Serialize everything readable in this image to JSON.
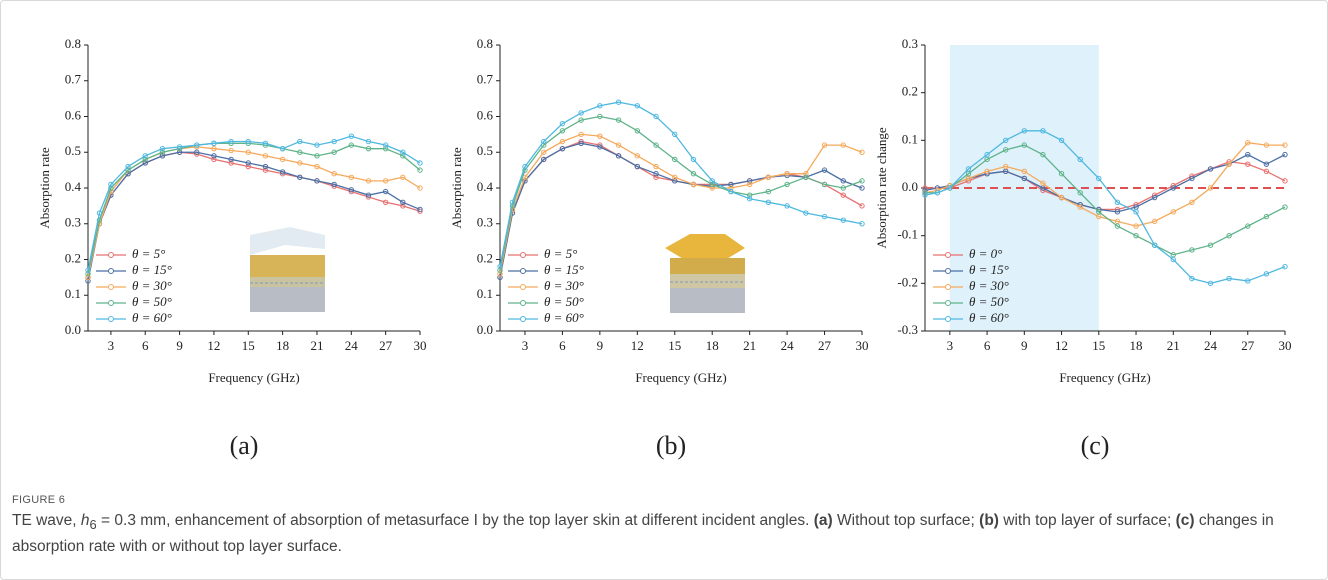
{
  "chart_data": [
    {
      "type": "line",
      "xlabel": "Frequency (GHz)",
      "ylabel": "Absorption rate",
      "panel_label": "(a)",
      "x": [
        1,
        2,
        3,
        4.5,
        6,
        7.5,
        9,
        10.5,
        12,
        13.5,
        15,
        16.5,
        18,
        19.5,
        21,
        22.5,
        24,
        25.5,
        27,
        28.5,
        30
      ],
      "xlim": [
        1,
        30
      ],
      "xticks": [
        3,
        6,
        9,
        12,
        15,
        18,
        21,
        24,
        27,
        30
      ],
      "ylim": [
        0,
        0.8
      ],
      "yticks": [
        {
          "value": 0,
          "label": "0.0"
        },
        0.1,
        0.2,
        0.3,
        0.4,
        0.5,
        0.6,
        0.7,
        0.8
      ],
      "legend": "lower left",
      "series": [
        {
          "name": "θ = 5°",
          "color": "#e8706f",
          "values": [
            0.15,
            0.3,
            0.38,
            0.44,
            0.47,
            0.49,
            0.5,
            0.495,
            0.48,
            0.47,
            0.46,
            0.45,
            0.44,
            0.43,
            0.42,
            0.405,
            0.39,
            0.375,
            0.36,
            0.35,
            0.335
          ]
        },
        {
          "name": "θ = 15°",
          "color": "#4a6fa5",
          "values": [
            0.14,
            0.3,
            0.38,
            0.44,
            0.47,
            0.49,
            0.5,
            0.5,
            0.49,
            0.48,
            0.47,
            0.46,
            0.445,
            0.43,
            0.42,
            0.41,
            0.395,
            0.38,
            0.39,
            0.36,
            0.34
          ]
        },
        {
          "name": "θ = 30°",
          "color": "#f5a95c",
          "values": [
            0.15,
            0.3,
            0.39,
            0.45,
            0.48,
            0.5,
            0.51,
            0.515,
            0.51,
            0.505,
            0.5,
            0.49,
            0.48,
            0.47,
            0.46,
            0.44,
            0.43,
            0.42,
            0.42,
            0.43,
            0.4
          ]
        },
        {
          "name": "θ = 50°",
          "color": "#5fb38a",
          "values": [
            0.16,
            0.31,
            0.4,
            0.45,
            0.48,
            0.5,
            0.51,
            0.52,
            0.525,
            0.525,
            0.525,
            0.52,
            0.51,
            0.5,
            0.49,
            0.5,
            0.52,
            0.51,
            0.51,
            0.49,
            0.45
          ]
        },
        {
          "name": "θ = 60°",
          "color": "#4fb8e0",
          "values": [
            0.17,
            0.33,
            0.41,
            0.46,
            0.49,
            0.51,
            0.515,
            0.52,
            0.525,
            0.53,
            0.53,
            0.525,
            0.51,
            0.53,
            0.52,
            0.53,
            0.545,
            0.53,
            0.52,
            0.5,
            0.47
          ]
        }
      ]
    },
    {
      "type": "line",
      "xlabel": "Frequency (GHz)",
      "ylabel": "Absorption rate",
      "panel_label": "(b)",
      "x": [
        1,
        2,
        3,
        4.5,
        6,
        7.5,
        9,
        10.5,
        12,
        13.5,
        15,
        16.5,
        18,
        19.5,
        21,
        22.5,
        24,
        25.5,
        27,
        28.5,
        30
      ],
      "xlim": [
        1,
        30
      ],
      "xticks": [
        3,
        6,
        9,
        12,
        15,
        18,
        21,
        24,
        27,
        30
      ],
      "ylim": [
        0,
        0.8
      ],
      "yticks": [
        {
          "value": 0,
          "label": "0.0"
        },
        0.1,
        0.2,
        0.3,
        0.4,
        0.5,
        0.6,
        0.7,
        0.8
      ],
      "legend": "lower left",
      "series": [
        {
          "name": "θ = 5°",
          "color": "#e8706f",
          "values": [
            0.15,
            0.33,
            0.42,
            0.48,
            0.51,
            0.53,
            0.52,
            0.49,
            0.46,
            0.43,
            0.42,
            0.41,
            0.41,
            0.41,
            0.42,
            0.43,
            0.44,
            0.43,
            0.41,
            0.38,
            0.35
          ]
        },
        {
          "name": "θ = 15°",
          "color": "#4a6fa5",
          "values": [
            0.15,
            0.33,
            0.42,
            0.48,
            0.51,
            0.525,
            0.515,
            0.49,
            0.46,
            0.44,
            0.42,
            0.41,
            0.405,
            0.41,
            0.42,
            0.43,
            0.435,
            0.43,
            0.45,
            0.42,
            0.4
          ]
        },
        {
          "name": "θ = 30°",
          "color": "#f5a95c",
          "values": [
            0.16,
            0.34,
            0.43,
            0.5,
            0.53,
            0.55,
            0.545,
            0.52,
            0.49,
            0.46,
            0.43,
            0.41,
            0.4,
            0.4,
            0.41,
            0.43,
            0.44,
            0.44,
            0.52,
            0.52,
            0.5
          ]
        },
        {
          "name": "θ = 50°",
          "color": "#5fb38a",
          "values": [
            0.17,
            0.35,
            0.45,
            0.52,
            0.56,
            0.59,
            0.6,
            0.59,
            0.56,
            0.52,
            0.48,
            0.44,
            0.41,
            0.39,
            0.38,
            0.39,
            0.41,
            0.43,
            0.41,
            0.4,
            0.42
          ]
        },
        {
          "name": "θ = 60°",
          "color": "#4fb8e0",
          "values": [
            0.18,
            0.36,
            0.46,
            0.53,
            0.58,
            0.61,
            0.63,
            0.64,
            0.63,
            0.6,
            0.55,
            0.48,
            0.42,
            0.39,
            0.37,
            0.36,
            0.35,
            0.33,
            0.32,
            0.31,
            0.3
          ]
        }
      ]
    },
    {
      "type": "line",
      "xlabel": "Frequency (GHz)",
      "ylabel": "Absorption rate change",
      "panel_label": "(c)",
      "x": [
        1,
        2,
        3,
        4.5,
        6,
        7.5,
        9,
        10.5,
        12,
        13.5,
        15,
        16.5,
        18,
        19.5,
        21,
        22.5,
        24,
        25.5,
        27,
        28.5,
        30
      ],
      "xlim": [
        1,
        30
      ],
      "xticks": [
        3,
        6,
        9,
        12,
        15,
        18,
        21,
        24,
        27,
        30
      ],
      "ylim": [
        -0.3,
        0.3
      ],
      "yticks": [
        -0.3,
        -0.2,
        -0.1,
        {
          "value": 0,
          "label": "0.0"
        },
        0.1,
        0.2,
        0.3
      ],
      "legend": "lower left",
      "span": {
        "x": [
          3,
          15
        ],
        "color": "#dff1fb"
      },
      "reference_line": {
        "y": 0,
        "color": "#e05050",
        "style": "dashed"
      },
      "series": [
        {
          "name": "θ = 0°",
          "color": "#e8706f",
          "values": [
            0,
            0,
            0,
            0.015,
            0.03,
            0.035,
            0.02,
            -0.005,
            -0.02,
            -0.035,
            -0.045,
            -0.045,
            -0.035,
            -0.015,
            0.005,
            0.025,
            0.04,
            0.055,
            0.05,
            0.035,
            0.015
          ]
        },
        {
          "name": "θ = 15°",
          "color": "#4a6fa5",
          "values": [
            -0.005,
            0,
            0.005,
            0.02,
            0.03,
            0.035,
            0.02,
            0,
            -0.02,
            -0.035,
            -0.045,
            -0.05,
            -0.04,
            -0.02,
            0,
            0.02,
            0.04,
            0.05,
            0.07,
            0.05,
            0.07
          ]
        },
        {
          "name": "θ = 30°",
          "color": "#f5a95c",
          "values": [
            -0.01,
            -0.005,
            0.005,
            0.02,
            0.035,
            0.045,
            0.035,
            0.01,
            -0.02,
            -0.04,
            -0.06,
            -0.07,
            -0.08,
            -0.07,
            -0.05,
            -0.03,
            0,
            0.05,
            0.095,
            0.09,
            0.09
          ]
        },
        {
          "name": "θ = 50°",
          "color": "#5fb38a",
          "values": [
            -0.01,
            -0.01,
            0,
            0.03,
            0.06,
            0.08,
            0.09,
            0.07,
            0.03,
            -0.01,
            -0.05,
            -0.08,
            -0.1,
            -0.12,
            -0.14,
            -0.13,
            -0.12,
            -0.1,
            -0.08,
            -0.06,
            -0.04
          ]
        },
        {
          "name": "θ = 60°",
          "color": "#4fb8e0",
          "values": [
            -0.015,
            -0.01,
            0,
            0.04,
            0.07,
            0.1,
            0.12,
            0.12,
            0.1,
            0.06,
            0.02,
            -0.03,
            -0.05,
            -0.12,
            -0.15,
            -0.19,
            -0.2,
            -0.19,
            -0.195,
            -0.18,
            -0.165
          ]
        }
      ]
    }
  ],
  "caption": {
    "label": "FIGURE 6",
    "parts": [
      "TE wave, ",
      "h",
      "6",
      " = 0.3 mm, enhancement of absorption of metasurface I by the top layer skin at different incident angles. ",
      "(a)",
      " Without top surface; ",
      "(b)",
      " with top layer of surface; ",
      "(c)",
      " changes in absorption rate with or without top layer surface."
    ]
  }
}
